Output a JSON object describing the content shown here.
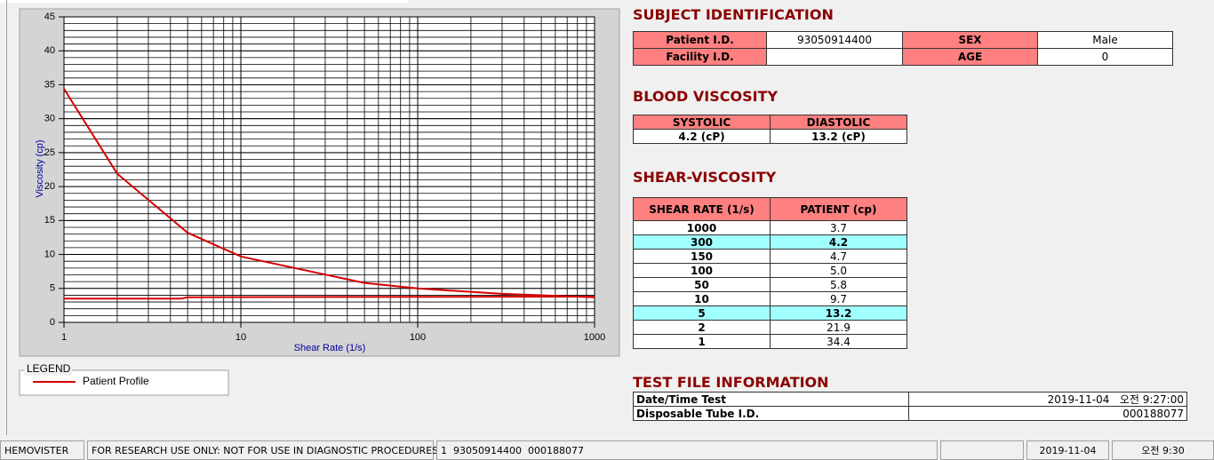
{
  "chart_data": {
    "type": "line",
    "y_label": "Viscosity (cp)",
    "x_label": "Shear Rate (1/s)",
    "log_x": true,
    "grid": true,
    "y_minor_step": 1,
    "xlim": [
      1,
      1000
    ],
    "ylim": [
      0,
      45
    ],
    "xticks": [
      1,
      10,
      100,
      1000
    ],
    "yticks": [
      0,
      5,
      10,
      15,
      20,
      25,
      30,
      35,
      40,
      45
    ],
    "legend_title": "LEGEND",
    "series": [
      {
        "name": "Patient Profile",
        "color": "#d40000",
        "x": [
          1,
          2,
          5,
          10,
          50,
          100,
          150,
          300,
          1000
        ],
        "values": [
          34.4,
          21.9,
          13.2,
          9.7,
          5.8,
          5.0,
          4.7,
          4.2,
          3.7
        ]
      },
      {
        "color": "#d40000",
        "x": [
          1,
          4.6,
          5,
          1000
        ],
        "values": [
          3.5,
          3.5,
          3.7,
          3.8
        ]
      }
    ]
  },
  "subject": {
    "title": "SUBJECT IDENTIFICATION",
    "fields": [
      {
        "label": "Patient I.D.",
        "value": "93050914400"
      },
      {
        "label": "SEX",
        "value": "Male"
      },
      {
        "label": "Facility I.D."
      },
      {
        "label": "AGE",
        "value": "0"
      }
    ]
  },
  "blood": {
    "title": "BLOOD VISCOSITY",
    "headers": [
      "SYSTOLIC",
      "DIASTOLIC"
    ],
    "values": [
      "4.2 (cP)",
      "13.2 (cP)"
    ]
  },
  "shear": {
    "title": "SHEAR-VISCOSITY",
    "headers": [
      "SHEAR RATE (1/s)",
      "PATIENT (cp)"
    ],
    "rows": [
      {
        "cells": [
          "1000",
          "3.7"
        ]
      },
      {
        "cells": [
          "300",
          "4.2"
        ],
        "highlight": true
      },
      {
        "cells": [
          "150",
          "4.7"
        ]
      },
      {
        "cells": [
          "100",
          "5.0"
        ]
      },
      {
        "cells": [
          "50",
          "5.8"
        ]
      },
      {
        "cells": [
          "10",
          "9.7"
        ]
      },
      {
        "cells": [
          "5",
          "13.2"
        ],
        "highlight": true
      },
      {
        "cells": [
          "2",
          "21.9"
        ]
      },
      {
        "cells": [
          "1",
          "34.4"
        ]
      }
    ]
  },
  "test_file": {
    "title": "TEST FILE INFORMATION",
    "rows": [
      [
        "Date/Time Test",
        "2019-11-04   오전 9:27:00"
      ],
      [
        "Disposable Tube I.D.",
        "000188077"
      ]
    ]
  },
  "status_bar": [
    "HEMOVISTER",
    "FOR RESEARCH USE ONLY: NOT FOR USE IN DIAGNOSTIC PROCEDURES",
    "1  93050914400  000188077",
    "2019-11-04",
    "오전 9:30"
  ]
}
